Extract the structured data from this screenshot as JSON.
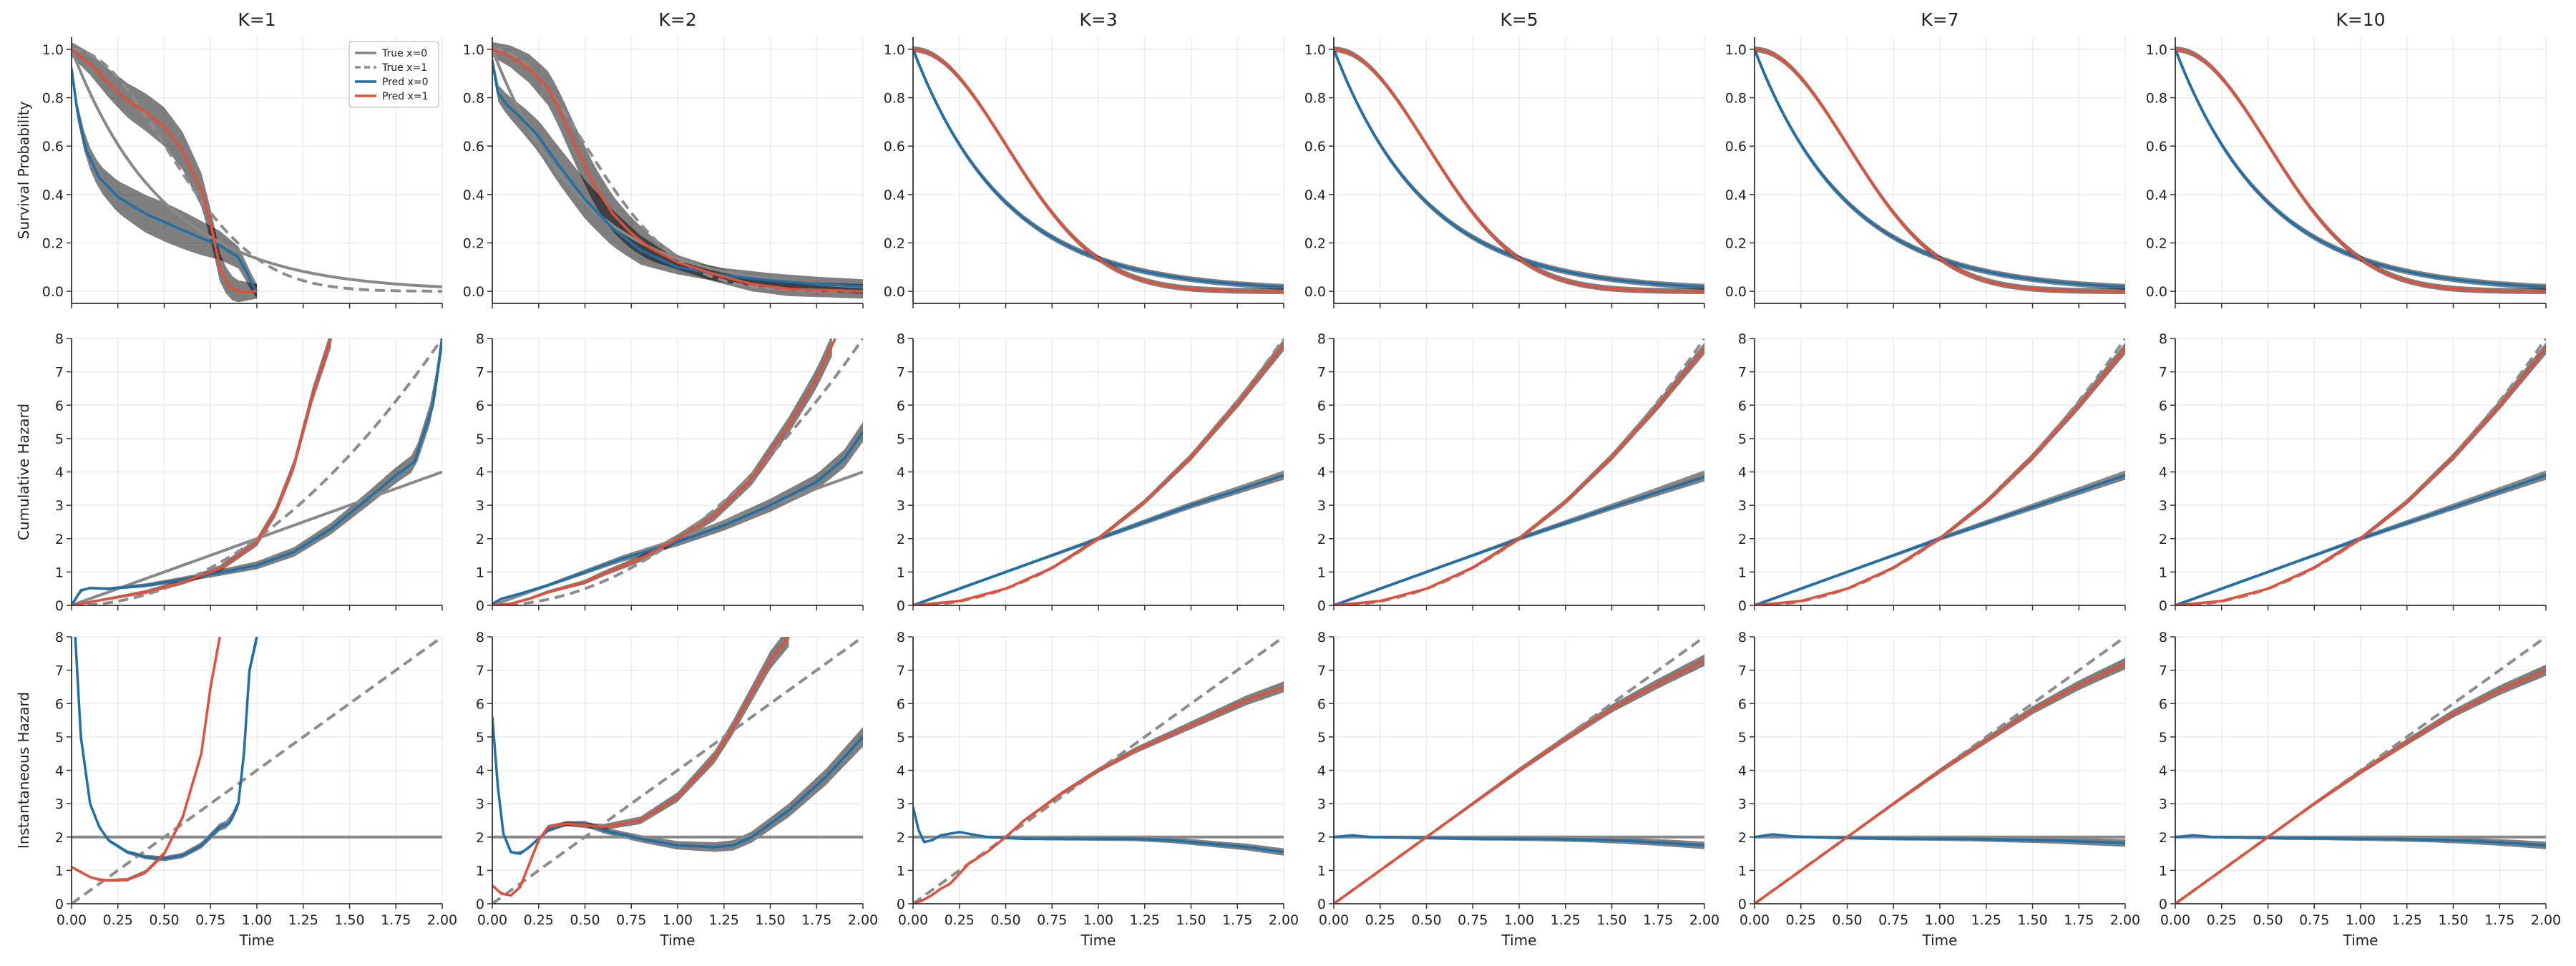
{
  "figure": {
    "column_titles": [
      "K=1",
      "K=2",
      "K=3",
      "K=5",
      "K=7",
      "K=10"
    ],
    "row_ylabels": [
      "Survival Probability",
      "Cumulative Hazard",
      "Instantaneous Hazard"
    ],
    "xlabel": "Time",
    "legend": [
      "True x=0",
      "True x=1",
      "Pred x=0",
      "Pred x=1"
    ]
  },
  "colors": {
    "true_x0": "#888888",
    "true_x1": "#8c8c8c",
    "pred_x0": "#1f6fa8",
    "pred_x1": "#e0503a",
    "band_x0": "#9ecae1",
    "band_x1": "#f4a59a",
    "grid": "#ebebeb"
  },
  "chart_data": {
    "type": "line",
    "layout": "3 rows x 6 columns small multiples",
    "grid": true,
    "legend_position": "top-right of first panel",
    "xlim": [
      0,
      2
    ],
    "x_ticks": [
      "0.00",
      "0.25",
      "0.50",
      "0.75",
      "1.00",
      "1.25",
      "1.50",
      "1.75",
      "2.00"
    ],
    "rows": [
      {
        "metric": "Survival Probability",
        "ylim": [
          -0.05,
          1.05
        ],
        "y_ticks": [
          "0.0",
          "0.2",
          "0.4",
          "0.6",
          "0.8",
          "1.0"
        ],
        "true_x0": "exp(-2t)",
        "true_x1": "exp(-2t^2)"
      },
      {
        "metric": "Cumulative Hazard",
        "ylim": [
          0,
          8
        ],
        "y_ticks": [
          "0",
          "1",
          "2",
          "3",
          "4",
          "5",
          "6",
          "7",
          "8"
        ],
        "true_x0": "2t",
        "true_x1": "2t^2"
      },
      {
        "metric": "Instantaneous Hazard",
        "ylim": [
          0,
          8
        ],
        "y_ticks": [
          "0",
          "1",
          "2",
          "3",
          "4",
          "5",
          "6",
          "7",
          "8"
        ],
        "true_x0": "2",
        "true_x1": "4t"
      }
    ],
    "panels": [
      {
        "title": "K=1",
        "survival": {
          "pred_x0": {
            "x": [
              0,
              0.03,
              0.08,
              0.15,
              0.25,
              0.4,
              0.55,
              0.7,
              0.8,
              0.9,
              0.95,
              0.98,
              1.0
            ],
            "y": [
              0.92,
              0.75,
              0.58,
              0.47,
              0.39,
              0.32,
              0.27,
              0.22,
              0.19,
              0.14,
              0.07,
              0.02,
              0.0
            ]
          },
          "pred_x1": {
            "x": [
              0,
              0.1,
              0.2,
              0.3,
              0.4,
              0.5,
              0.6,
              0.7,
              0.75,
              0.8,
              0.85,
              0.9,
              1.0
            ],
            "y": [
              1.0,
              0.94,
              0.86,
              0.79,
              0.74,
              0.68,
              0.58,
              0.42,
              0.28,
              0.1,
              0.02,
              0.0,
              0.0
            ]
          }
        },
        "cumhaz": {
          "pred_x0": {
            "x": [
              0,
              0.05,
              0.1,
              0.2,
              0.4,
              0.6,
              0.8,
              1.0,
              1.2,
              1.4,
              1.6,
              1.75,
              1.85,
              1.95,
              2.0
            ],
            "y": [
              0,
              0.45,
              0.52,
              0.5,
              0.6,
              0.78,
              0.98,
              1.2,
              1.6,
              2.3,
              3.2,
              3.9,
              4.3,
              6.0,
              8.0
            ]
          },
          "pred_x1": {
            "x": [
              0,
              0.2,
              0.4,
              0.6,
              0.8,
              1.0,
              1.1,
              1.2,
              1.3,
              1.4
            ],
            "y": [
              0,
              0.2,
              0.4,
              0.7,
              1.1,
              1.9,
              2.8,
              4.2,
              6.3,
              8.0
            ]
          }
        },
        "hazard": {
          "pred_x0": {
            "x": [
              0.02,
              0.05,
              0.1,
              0.15,
              0.2,
              0.3,
              0.4,
              0.5,
              0.6,
              0.7,
              0.8,
              0.85,
              0.9,
              0.93,
              0.96,
              1.0
            ],
            "y": [
              8.0,
              5.0,
              3.0,
              2.3,
              1.9,
              1.55,
              1.4,
              1.35,
              1.45,
              1.75,
              2.3,
              2.4,
              3.0,
              4.5,
              7.0,
              8.0
            ]
          },
          "pred_x1": {
            "x": [
              0,
              0.05,
              0.1,
              0.15,
              0.2,
              0.3,
              0.4,
              0.5,
              0.6,
              0.7,
              0.75,
              0.8
            ],
            "y": [
              1.1,
              0.95,
              0.8,
              0.72,
              0.7,
              0.72,
              0.95,
              1.5,
              2.6,
              4.5,
              6.5,
              8.0
            ]
          }
        }
      },
      {
        "title": "K=2",
        "survival": {
          "pred_x0": {
            "x": [
              0,
              0.03,
              0.08,
              0.15,
              0.25,
              0.35,
              0.5,
              0.65,
              0.8,
              1.0,
              1.25,
              1.5,
              1.75,
              2.0
            ],
            "y": [
              0.95,
              0.82,
              0.77,
              0.72,
              0.64,
              0.53,
              0.38,
              0.26,
              0.17,
              0.1,
              0.066,
              0.045,
              0.03,
              0.02
            ]
          },
          "pred_x1": {
            "x": [
              0,
              0.1,
              0.2,
              0.3,
              0.35,
              0.45,
              0.55,
              0.65,
              0.75,
              0.85,
              1.0,
              1.2,
              1.4,
              1.6,
              2.0
            ],
            "y": [
              1.0,
              0.97,
              0.92,
              0.84,
              0.77,
              0.6,
              0.44,
              0.32,
              0.24,
              0.18,
              0.12,
              0.07,
              0.03,
              0.01,
              0.0
            ]
          }
        },
        "cumhaz": {
          "pred_x0": {
            "x": [
              0,
              0.05,
              0.15,
              0.3,
              0.5,
              0.7,
              1.0,
              1.25,
              1.5,
              1.75,
              1.9,
              2.0
            ],
            "y": [
              0.05,
              0.2,
              0.35,
              0.6,
              1.0,
              1.4,
              1.9,
              2.4,
              3.0,
              3.7,
              4.4,
              5.2
            ]
          },
          "pred_x1": {
            "x": [
              0,
              0.1,
              0.2,
              0.3,
              0.4,
              0.5,
              0.6,
              0.8,
              1.0,
              1.2,
              1.4,
              1.6,
              1.75,
              1.85
            ],
            "y": [
              0,
              0.05,
              0.2,
              0.4,
              0.55,
              0.7,
              0.95,
              1.4,
              2.0,
              2.7,
              3.8,
              5.4,
              6.8,
              8.0
            ]
          }
        },
        "hazard": {
          "pred_x0": {
            "x": [
              0.0,
              0.03,
              0.06,
              0.1,
              0.15,
              0.2,
              0.3,
              0.4,
              0.5,
              0.6,
              0.8,
              1.0,
              1.2,
              1.3,
              1.4,
              1.6,
              1.8,
              2.0
            ],
            "y": [
              5.6,
              3.5,
              2.1,
              1.55,
              1.5,
              1.7,
              2.2,
              2.4,
              2.4,
              2.2,
              1.95,
              1.75,
              1.7,
              1.75,
              2.0,
              2.8,
              3.8,
              5.0
            ]
          },
          "pred_x1": {
            "x": [
              0.0,
              0.05,
              0.1,
              0.15,
              0.2,
              0.25,
              0.3,
              0.4,
              0.5,
              0.6,
              0.8,
              1.0,
              1.2,
              1.3,
              1.4,
              1.5,
              1.6
            ],
            "y": [
              0.55,
              0.3,
              0.25,
              0.5,
              1.2,
              1.9,
              2.3,
              2.4,
              2.35,
              2.3,
              2.5,
              3.2,
              4.4,
              5.3,
              6.3,
              7.3,
              8.0
            ]
          }
        }
      },
      {
        "title": "K=3",
        "survival": {
          "pred_x0": "true_x0",
          "pred_x1": "true_x1"
        },
        "cumhaz": {
          "pred_x0": {
            "x": [
              0,
              0.5,
              1.0,
              1.5,
              2.0
            ],
            "y": [
              0,
              1.0,
              2.0,
              3.0,
              3.9
            ]
          },
          "pred_x1": {
            "x": [
              0,
              0.25,
              0.5,
              0.75,
              1.0,
              1.25,
              1.5,
              1.75,
              2.0
            ],
            "y": [
              0,
              0.13,
              0.5,
              1.12,
              2.0,
              3.1,
              4.45,
              6.05,
              7.8
            ]
          }
        },
        "hazard": {
          "pred_x0": {
            "x": [
              0.0,
              0.03,
              0.06,
              0.1,
              0.15,
              0.25,
              0.4,
              0.6,
              0.8,
              1.0,
              1.2,
              1.4,
              1.6,
              1.8,
              2.0
            ],
            "y": [
              2.9,
              2.2,
              1.85,
              1.9,
              2.05,
              2.15,
              2.0,
              1.95,
              1.95,
              1.95,
              1.95,
              1.9,
              1.8,
              1.7,
              1.55
            ]
          },
          "pred_x1": {
            "x": [
              0.0,
              0.05,
              0.1,
              0.15,
              0.2,
              0.25,
              0.3,
              0.4,
              0.5,
              0.6,
              0.8,
              1.0,
              1.2,
              1.4,
              1.6,
              1.8,
              2.0
            ],
            "y": [
              0.0,
              0.1,
              0.25,
              0.45,
              0.6,
              0.9,
              1.2,
              1.55,
              2.0,
              2.5,
              3.3,
              4.0,
              4.6,
              5.1,
              5.6,
              6.1,
              6.5
            ]
          }
        }
      },
      {
        "title": "K=5",
        "survival": {
          "pred_x0": "true_x0",
          "pred_x1": "true_x1"
        },
        "cumhaz": {
          "pred_x0": {
            "x": [
              0,
              0.5,
              1.0,
              1.5,
              2.0
            ],
            "y": [
              0,
              1.0,
              2.0,
              2.95,
              3.85
            ]
          },
          "pred_x1": {
            "x": [
              0,
              0.25,
              0.5,
              0.75,
              1.0,
              1.25,
              1.5,
              1.75,
              2.0
            ],
            "y": [
              0,
              0.13,
              0.5,
              1.13,
              2.0,
              3.1,
              4.45,
              6.0,
              7.7
            ]
          }
        },
        "hazard": {
          "pred_x0": {
            "x": [
              0.0,
              0.1,
              0.2,
              0.4,
              0.6,
              0.8,
              1.0,
              1.2,
              1.4,
              1.6,
              1.8,
              2.0
            ],
            "y": [
              2.0,
              2.05,
              2.0,
              1.98,
              1.96,
              1.95,
              1.95,
              1.94,
              1.92,
              1.88,
              1.82,
              1.75
            ]
          },
          "pred_x1": {
            "x": [
              0.0,
              0.25,
              0.5,
              0.75,
              1.0,
              1.25,
              1.5,
              1.75,
              2.0
            ],
            "y": [
              0.0,
              1.0,
              2.0,
              3.0,
              4.0,
              4.95,
              5.85,
              6.6,
              7.3
            ]
          }
        }
      },
      {
        "title": "K=7",
        "survival": {
          "pred_x0": "true_x0",
          "pred_x1": "true_x1"
        },
        "cumhaz": {
          "pred_x0": {
            "x": [
              0,
              0.5,
              1.0,
              1.5,
              2.0
            ],
            "y": [
              0,
              1.0,
              2.0,
              2.95,
              3.9
            ]
          },
          "pred_x1": {
            "x": [
              0,
              0.25,
              0.5,
              0.75,
              1.0,
              1.25,
              1.5,
              1.75,
              2.0
            ],
            "y": [
              0,
              0.13,
              0.5,
              1.13,
              2.0,
              3.1,
              4.45,
              6.0,
              7.7
            ]
          }
        },
        "hazard": {
          "pred_x0": {
            "x": [
              0.0,
              0.1,
              0.2,
              0.4,
              0.6,
              0.8,
              1.0,
              1.2,
              1.4,
              1.6,
              1.8,
              2.0
            ],
            "y": [
              2.0,
              2.08,
              2.02,
              1.98,
              1.96,
              1.95,
              1.95,
              1.94,
              1.92,
              1.9,
              1.86,
              1.82
            ]
          },
          "pred_x1": {
            "x": [
              0.0,
              0.25,
              0.5,
              0.75,
              1.0,
              1.25,
              1.5,
              1.75,
              2.0
            ],
            "y": [
              0.0,
              1.0,
              2.0,
              3.0,
              3.98,
              4.9,
              5.8,
              6.55,
              7.2
            ]
          }
        }
      },
      {
        "title": "K=10",
        "survival": {
          "pred_x0": "true_x0",
          "pred_x1": "true_x1"
        },
        "cumhaz": {
          "pred_x0": {
            "x": [
              0,
              0.5,
              1.0,
              1.5,
              2.0
            ],
            "y": [
              0,
              1.0,
              2.0,
              2.95,
              3.9
            ]
          },
          "pred_x1": {
            "x": [
              0,
              0.25,
              0.5,
              0.75,
              1.0,
              1.25,
              1.5,
              1.75,
              2.0
            ],
            "y": [
              0,
              0.13,
              0.5,
              1.13,
              2.0,
              3.1,
              4.45,
              6.0,
              7.7
            ]
          }
        },
        "hazard": {
          "pred_x0": {
            "x": [
              0.0,
              0.1,
              0.2,
              0.4,
              0.6,
              0.8,
              1.0,
              1.2,
              1.4,
              1.6,
              1.8,
              2.0
            ],
            "y": [
              2.0,
              2.05,
              2.0,
              1.98,
              1.96,
              1.96,
              1.95,
              1.94,
              1.92,
              1.88,
              1.82,
              1.75
            ]
          },
          "pred_x1": {
            "x": [
              0.0,
              0.25,
              0.5,
              0.75,
              1.0,
              1.25,
              1.5,
              1.75,
              2.0
            ],
            "y": [
              0.0,
              1.0,
              2.0,
              3.0,
              3.95,
              4.85,
              5.7,
              6.4,
              7.0
            ]
          }
        }
      }
    ]
  }
}
